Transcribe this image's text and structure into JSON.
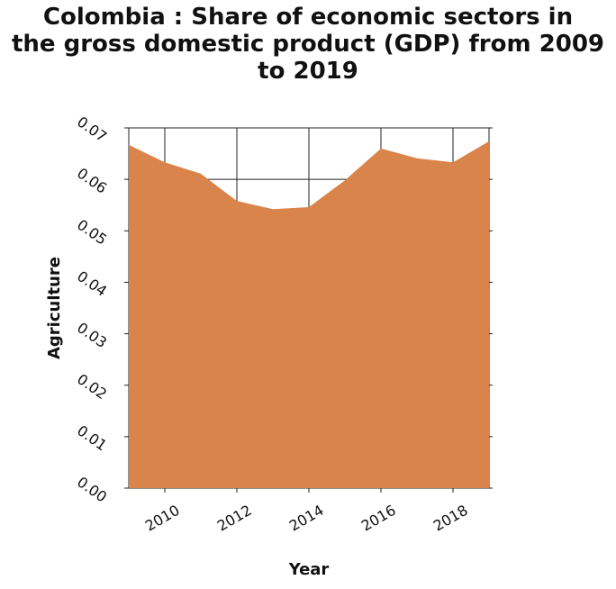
{
  "chart_data": {
    "type": "area",
    "title_lines": [
      "Colombia : Share of economic sectors in",
      "the gross domestic product (GDP) from 2009",
      "to 2019"
    ],
    "xlabel": "Year",
    "ylabel": "Agriculture",
    "x": [
      2009,
      2010,
      2011,
      2012,
      2013,
      2014,
      2015,
      2016,
      2017,
      2018,
      2019
    ],
    "values": [
      0.0667,
      0.0633,
      0.0611,
      0.0558,
      0.0542,
      0.0546,
      0.0598,
      0.066,
      0.0641,
      0.0633,
      0.0674
    ],
    "xlim": [
      2009,
      2019
    ],
    "ylim": [
      0,
      0.07
    ],
    "x_ticks": [
      "2010",
      "2012",
      "2014",
      "2016",
      "2018"
    ],
    "y_ticks": [
      "0.00",
      "0.01",
      "0.02",
      "0.03",
      "0.04",
      "0.05",
      "0.06",
      "0.07"
    ],
    "grid": true,
    "fill_color": "#d9844a"
  }
}
